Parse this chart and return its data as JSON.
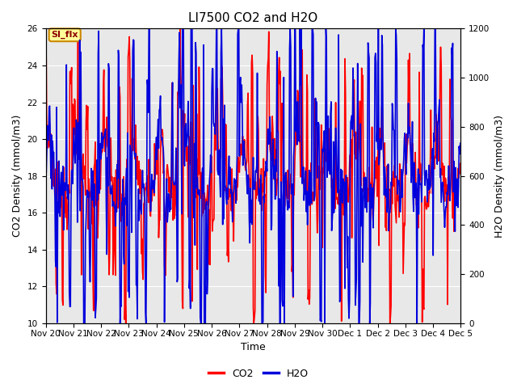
{
  "title": "LI7500 CO2 and H2O",
  "xlabel": "Time",
  "ylabel_left": "CO2 Density (mmol/m3)",
  "ylabel_right": "H2O Density (mmol/m3)",
  "ylim_left": [
    10,
    26
  ],
  "ylim_right": [
    0,
    1200
  ],
  "yticks_left": [
    10,
    12,
    14,
    16,
    18,
    20,
    22,
    24,
    26
  ],
  "yticks_right": [
    0,
    200,
    400,
    600,
    800,
    1000,
    1200
  ],
  "co2_color": "#FF0000",
  "h2o_color": "#0000DD",
  "background_color": "#E8E8E8",
  "fig_background": "#FFFFFF",
  "legend_co2": "CO2",
  "legend_h2o": "H2O",
  "annotation_text": "SI_flx",
  "annotation_bg": "#FFFF99",
  "annotation_border": "#CC8800",
  "title_fontsize": 11,
  "axis_label_fontsize": 9,
  "tick_fontsize": 7.5,
  "legend_fontsize": 9,
  "line_width": 1.2
}
